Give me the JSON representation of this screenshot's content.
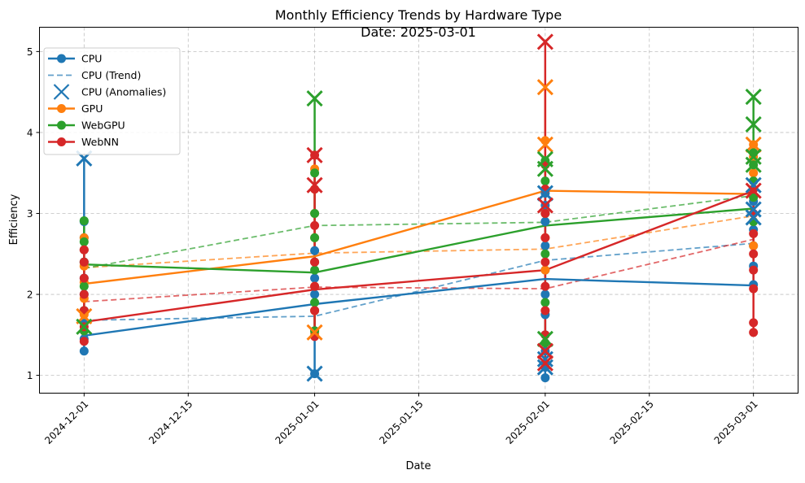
{
  "chart_data": {
    "type": "line",
    "title": "Monthly Efficiency Trends by Hardware Type",
    "subtitle": "Date: 2025-03-01",
    "xlabel": "Date",
    "ylabel": "Efficiency",
    "x_axis_type": "date",
    "xlim": [
      "2024-11-25",
      "2025-03-07"
    ],
    "ylim": [
      0.78,
      5.3
    ],
    "x_ticks": [
      "2024-12-01",
      "2024-12-15",
      "2025-01-01",
      "2025-01-15",
      "2025-02-01",
      "2025-02-15",
      "2025-03-01"
    ],
    "y_ticks": [
      1,
      2,
      3,
      4,
      5
    ],
    "grid": true,
    "legend_position": "top-left",
    "legend": [
      {
        "label": "CPU",
        "style": "line-marker",
        "color": "#1f77b4"
      },
      {
        "label": "CPU (Trend)",
        "style": "dashed",
        "color": "#1f77b4"
      },
      {
        "label": "CPU (Anomalies)",
        "style": "cross",
        "color": "#1f77b4"
      },
      {
        "label": "GPU",
        "style": "line-marker",
        "color": "#ff7f0e"
      },
      {
        "label": "WebGPU",
        "style": "line-marker",
        "color": "#2ca02c"
      },
      {
        "label": "WebNN",
        "style": "line-marker",
        "color": "#d62728"
      }
    ],
    "series": [
      {
        "name": "CPU",
        "color": "#1f77b4",
        "x": [
          "2024-12-01",
          "2025-01-01",
          "2025-02-01",
          "2025-03-01"
        ],
        "mean": [
          1.49,
          1.88,
          2.19,
          2.11
        ],
        "trend": [
          1.68,
          1.73,
          2.42,
          2.63
        ],
        "spread": [
          [
            1.3,
            3.68
          ],
          [
            1.02,
            2.54
          ],
          [
            0.97,
            3.25
          ],
          [
            2.12,
            3.4
          ]
        ],
        "points": [
          [
            1.3,
            1.45,
            1.55,
            1.65,
            1.8,
            2.0,
            2.2,
            2.4,
            2.55,
            2.7,
            2.9
          ],
          [
            1.02,
            1.55,
            1.8,
            2.0,
            2.2,
            2.4,
            2.54
          ],
          [
            0.97,
            1.1,
            1.3,
            1.5,
            1.75,
            2.0,
            2.3,
            2.6,
            2.9,
            3.1,
            3.25
          ],
          [
            2.12,
            2.35,
            2.6,
            2.8,
            3.0,
            3.15,
            3.3,
            3.4
          ]
        ],
        "anomalies": [
          [
            3.68
          ],
          [
            1.02
          ],
          [
            1.1,
            1.2,
            3.25
          ],
          [
            2.95,
            3.05,
            3.35
          ]
        ]
      },
      {
        "name": "GPU",
        "color": "#ff7f0e",
        "x": [
          "2024-12-01",
          "2025-01-01",
          "2025-02-01",
          "2025-03-01"
        ],
        "mean": [
          2.13,
          2.47,
          3.28,
          3.24
        ],
        "trend": [
          2.33,
          2.51,
          2.56,
          2.97
        ],
        "spread": [
          [
            1.55,
            2.7
          ],
          [
            1.52,
            3.55
          ],
          [
            2.3,
            4.56
          ],
          [
            2.6,
            3.85
          ]
        ],
        "points": [
          [
            1.55,
            1.75,
            1.95,
            2.15,
            2.35,
            2.55,
            2.7
          ],
          [
            1.52,
            1.8,
            2.1,
            2.4,
            2.7,
            3.0,
            3.3,
            3.55
          ],
          [
            2.3,
            2.7,
            3.0,
            3.3,
            3.6,
            3.9
          ],
          [
            2.6,
            2.9,
            3.2,
            3.5,
            3.7,
            3.85
          ]
        ],
        "anomalies": [
          [
            1.73
          ],
          [
            1.53
          ],
          [
            3.85,
            4.56
          ],
          [
            3.85
          ]
        ]
      },
      {
        "name": "WebGPU",
        "color": "#2ca02c",
        "x": [
          "2024-12-01",
          "2025-01-01",
          "2025-02-01",
          "2025-03-01"
        ],
        "mean": [
          2.37,
          2.27,
          2.85,
          3.06
        ],
        "trend": [
          2.32,
          2.85,
          2.89,
          3.22
        ],
        "spread": [
          [
            1.55,
            2.91
          ],
          [
            1.55,
            4.42
          ],
          [
            1.4,
            3.65
          ],
          [
            2.9,
            4.44
          ]
        ],
        "points": [
          [
            1.55,
            1.8,
            2.1,
            2.4,
            2.65,
            2.91
          ],
          [
            1.55,
            1.9,
            2.3,
            2.7,
            3.0,
            3.5
          ],
          [
            1.4,
            1.9,
            2.5,
            3.0,
            3.4,
            3.65
          ],
          [
            2.9,
            3.2,
            3.4,
            3.6,
            3.75
          ]
        ],
        "anomalies": [
          [
            1.6
          ],
          [
            4.42
          ],
          [
            1.45,
            3.55,
            3.67
          ],
          [
            3.6,
            3.7,
            4.1,
            4.44
          ]
        ]
      },
      {
        "name": "WebNN",
        "color": "#d62728",
        "x": [
          "2024-12-01",
          "2025-01-01",
          "2025-02-01",
          "2025-03-01"
        ],
        "mean": [
          1.66,
          2.06,
          2.3,
          3.28
        ],
        "trend": [
          1.91,
          2.09,
          2.07,
          2.68
        ],
        "spread": [
          [
            1.42,
            2.55
          ],
          [
            1.48,
            3.72
          ],
          [
            1.15,
            5.12
          ],
          [
            1.53,
            3.3
          ]
        ],
        "points": [
          [
            1.42,
            1.6,
            1.8,
            2.0,
            2.2,
            2.4,
            2.55
          ],
          [
            1.48,
            1.8,
            2.1,
            2.4,
            2.85,
            3.3,
            3.72
          ],
          [
            1.15,
            1.5,
            1.8,
            2.1,
            2.4,
            2.7,
            3.0,
            3.3,
            3.6
          ],
          [
            1.53,
            1.65,
            2.07,
            2.3,
            2.5,
            2.75,
            3.0,
            3.3
          ]
        ],
        "anomalies": [
          [],
          [
            3.35,
            3.72
          ],
          [
            1.15,
            1.3,
            3.1,
            5.12
          ],
          [
            3.28
          ]
        ]
      }
    ]
  }
}
